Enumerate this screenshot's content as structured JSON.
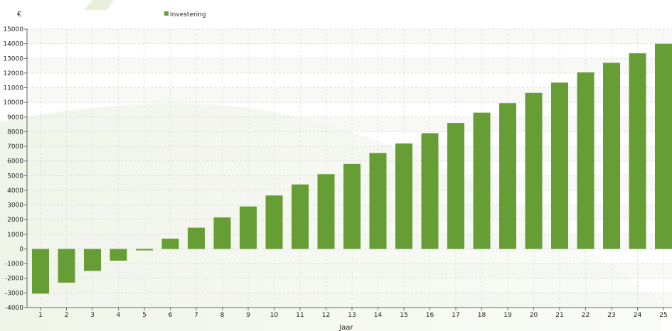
{
  "chart_data": {
    "type": "bar",
    "ylabel": "€",
    "xlabel": "Jaar",
    "legend": "top-center",
    "grid": true,
    "ylim": [
      -4000,
      15000
    ],
    "yticks": [
      -4000,
      -3000,
      -2000,
      -1000,
      0,
      1000,
      2000,
      3000,
      4000,
      5000,
      6000,
      7000,
      8000,
      9000,
      10000,
      11000,
      12000,
      13000,
      14000,
      15000
    ],
    "categories": [
      "1",
      "2",
      "3",
      "4",
      "5",
      "6",
      "7",
      "8",
      "9",
      "10",
      "11",
      "12",
      "13",
      "14",
      "15",
      "16",
      "17",
      "18",
      "19",
      "20",
      "21",
      "22",
      "23",
      "24",
      "25"
    ],
    "series": [
      {
        "name": "Investering",
        "color": "#669e35",
        "values": [
          -3050,
          -2300,
          -1500,
          -800,
          -100,
          700,
          1450,
          2150,
          2900,
          3650,
          4400,
          5100,
          5800,
          6550,
          7200,
          7900,
          8600,
          9300,
          9950,
          10650,
          11350,
          12050,
          12700,
          13350,
          14000
        ]
      }
    ]
  }
}
